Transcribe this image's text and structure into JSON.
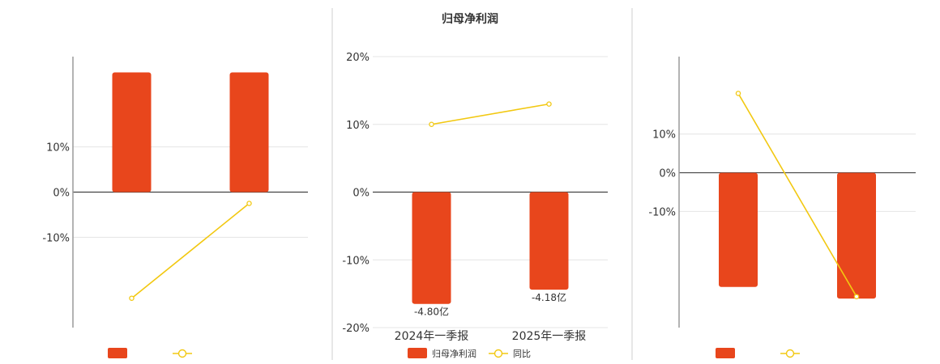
{
  "colors": {
    "bar": "#e8461c",
    "line": "#f2c811",
    "grid": "#e4e4e4",
    "axis": "#444444",
    "text": "#333333",
    "divider": "#cfcfcf"
  },
  "chart_data": [
    {
      "type": "bar",
      "title": "",
      "categories": [
        "",
        ""
      ],
      "ylim": [
        -30,
        30
      ],
      "yticks": [
        {
          "v": 10,
          "label": "10%"
        },
        {
          "v": 0,
          "label": "0%"
        },
        {
          "v": -10,
          "label": "-10%"
        }
      ],
      "series": [
        {
          "type": "bar",
          "values": [
            26.5,
            26.5
          ],
          "data_labels": []
        },
        {
          "type": "line",
          "values": [
            -23.5,
            -2.5
          ]
        }
      ],
      "legend": {
        "bar_label": "",
        "line_label": ""
      },
      "grid": true
    },
    {
      "type": "bar",
      "title": "归母净利润",
      "categories": [
        "2024年一季报",
        "2025年一季报"
      ],
      "ylim": [
        -20,
        20
      ],
      "yticks": [
        {
          "v": 20,
          "label": "20%"
        },
        {
          "v": 10,
          "label": "10%"
        },
        {
          "v": 0,
          "label": "0%"
        },
        {
          "v": -10,
          "label": "-10%"
        },
        {
          "v": -20,
          "label": "-20%"
        }
      ],
      "series": [
        {
          "name": "归母净利润",
          "type": "bar",
          "values": [
            -16.5,
            -14.4
          ],
          "data_labels": [
            "-4.80亿",
            "-4.18亿"
          ]
        },
        {
          "name": "同比",
          "type": "line",
          "values": [
            10,
            13
          ]
        }
      ],
      "legend": {
        "bar_label": "归母净利润",
        "line_label": "同比"
      },
      "grid": true
    },
    {
      "type": "bar",
      "title": "",
      "categories": [
        "",
        ""
      ],
      "ylim": [
        -40,
        30
      ],
      "yticks": [
        {
          "v": 10,
          "label": "10%"
        },
        {
          "v": 0,
          "label": "0%"
        },
        {
          "v": -10,
          "label": "-10%"
        }
      ],
      "series": [
        {
          "type": "bar",
          "values": [
            -29.5,
            -32.5
          ],
          "data_labels": []
        },
        {
          "type": "line",
          "values": [
            20.5,
            -32
          ]
        }
      ],
      "legend": {
        "bar_label": "",
        "line_label": ""
      },
      "grid": true
    }
  ]
}
